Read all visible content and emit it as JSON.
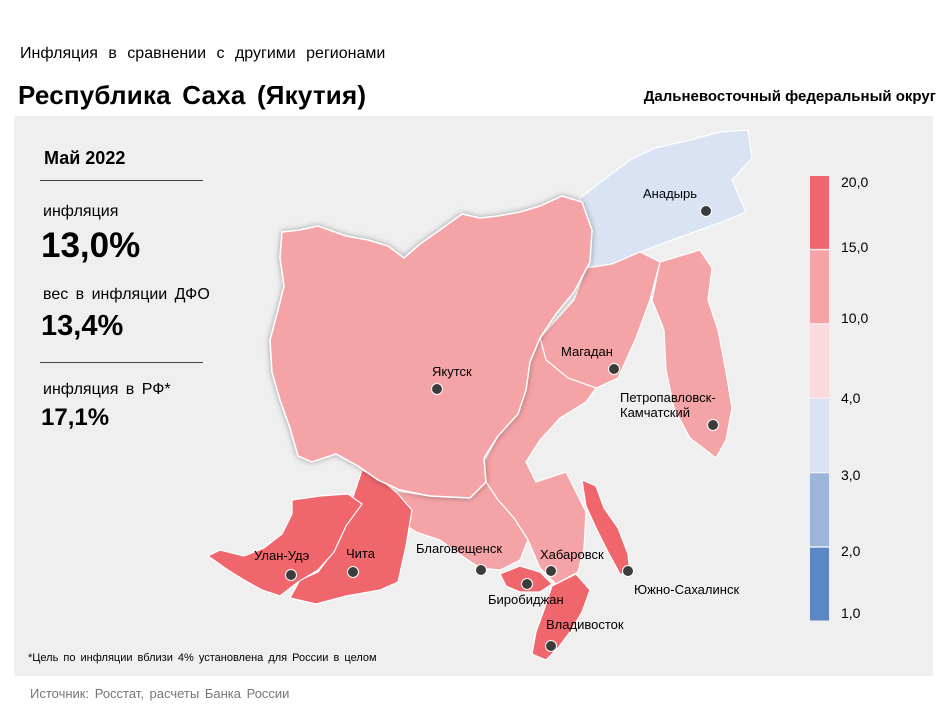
{
  "header": {
    "subtitle": "Инфляция  в сравнении  с другими  регионами",
    "title": "Республика Саха (Якутия)",
    "district": "Дальневосточный федеральный округ"
  },
  "stats": {
    "period": "Май 2022",
    "inflation_label": "инфляция",
    "inflation_value": "13,0%",
    "weight_label": "вес в инфляции ДФО",
    "weight_value": "13,4%",
    "rf_label": "инфляция  в РФ*",
    "rf_value": "17,1%"
  },
  "footnote": "*Цель по инфляции вблизи 4% установлена для России в целом",
  "source": "Источник: Росстат, расчеты Банка России",
  "map": {
    "regions": [
      {
        "id": "yakutia",
        "inflation_class": "10-15",
        "color": "#f4a3a6"
      },
      {
        "id": "chukotka",
        "inflation_class": "3-4",
        "color": "#dae3f3"
      },
      {
        "id": "magadan",
        "inflation_class": "10-15",
        "color": "#f4a3a6"
      },
      {
        "id": "kamchatka",
        "inflation_class": "10-15",
        "color": "#f4a3a6"
      },
      {
        "id": "buryatia",
        "inflation_class": "15-20",
        "color": "#f0666d"
      },
      {
        "id": "zabaykalsky",
        "inflation_class": "15-20",
        "color": "#f0666d"
      },
      {
        "id": "amur",
        "inflation_class": "10-15",
        "color": "#f4a3a6"
      },
      {
        "id": "khabarovsk",
        "inflation_class": "10-15",
        "color": "#f4a3a6"
      },
      {
        "id": "jewish-ao",
        "inflation_class": "15-20",
        "color": "#f0666d"
      },
      {
        "id": "primorsky",
        "inflation_class": "15-20",
        "color": "#f0666d"
      },
      {
        "id": "sakhalin",
        "inflation_class": "15-20",
        "color": "#f0666d"
      }
    ],
    "cities": [
      {
        "id": "anadyr",
        "label": "Анадырь"
      },
      {
        "id": "yakutsk",
        "label": "Якутск"
      },
      {
        "id": "magadan",
        "label": "Магадан"
      },
      {
        "id": "petropavlovsk",
        "label": "Петропавловск-",
        "label2": "Камчатский"
      },
      {
        "id": "ulan-ude",
        "label": "Улан-Удэ"
      },
      {
        "id": "chita",
        "label": "Чита"
      },
      {
        "id": "blagoveshchensk",
        "label": "Благовещенск"
      },
      {
        "id": "khabarovsk",
        "label": "Хабаровск"
      },
      {
        "id": "birobidzhan",
        "label": "Биробиджан"
      },
      {
        "id": "vladivostok",
        "label": "Владивосток"
      },
      {
        "id": "yuzhno-sakhalinsk",
        "label": "Южно-Сахалинск"
      }
    ]
  },
  "legend": {
    "ticks": [
      "20,0",
      "15,0",
      "10,0",
      "4,0",
      "3,0",
      "2,0",
      "1,0"
    ],
    "colors": [
      "#f0666d",
      "#f4a3a6",
      "#fadadd",
      "#dae3f3",
      "#9db5da",
      "#5b87c5"
    ]
  }
}
